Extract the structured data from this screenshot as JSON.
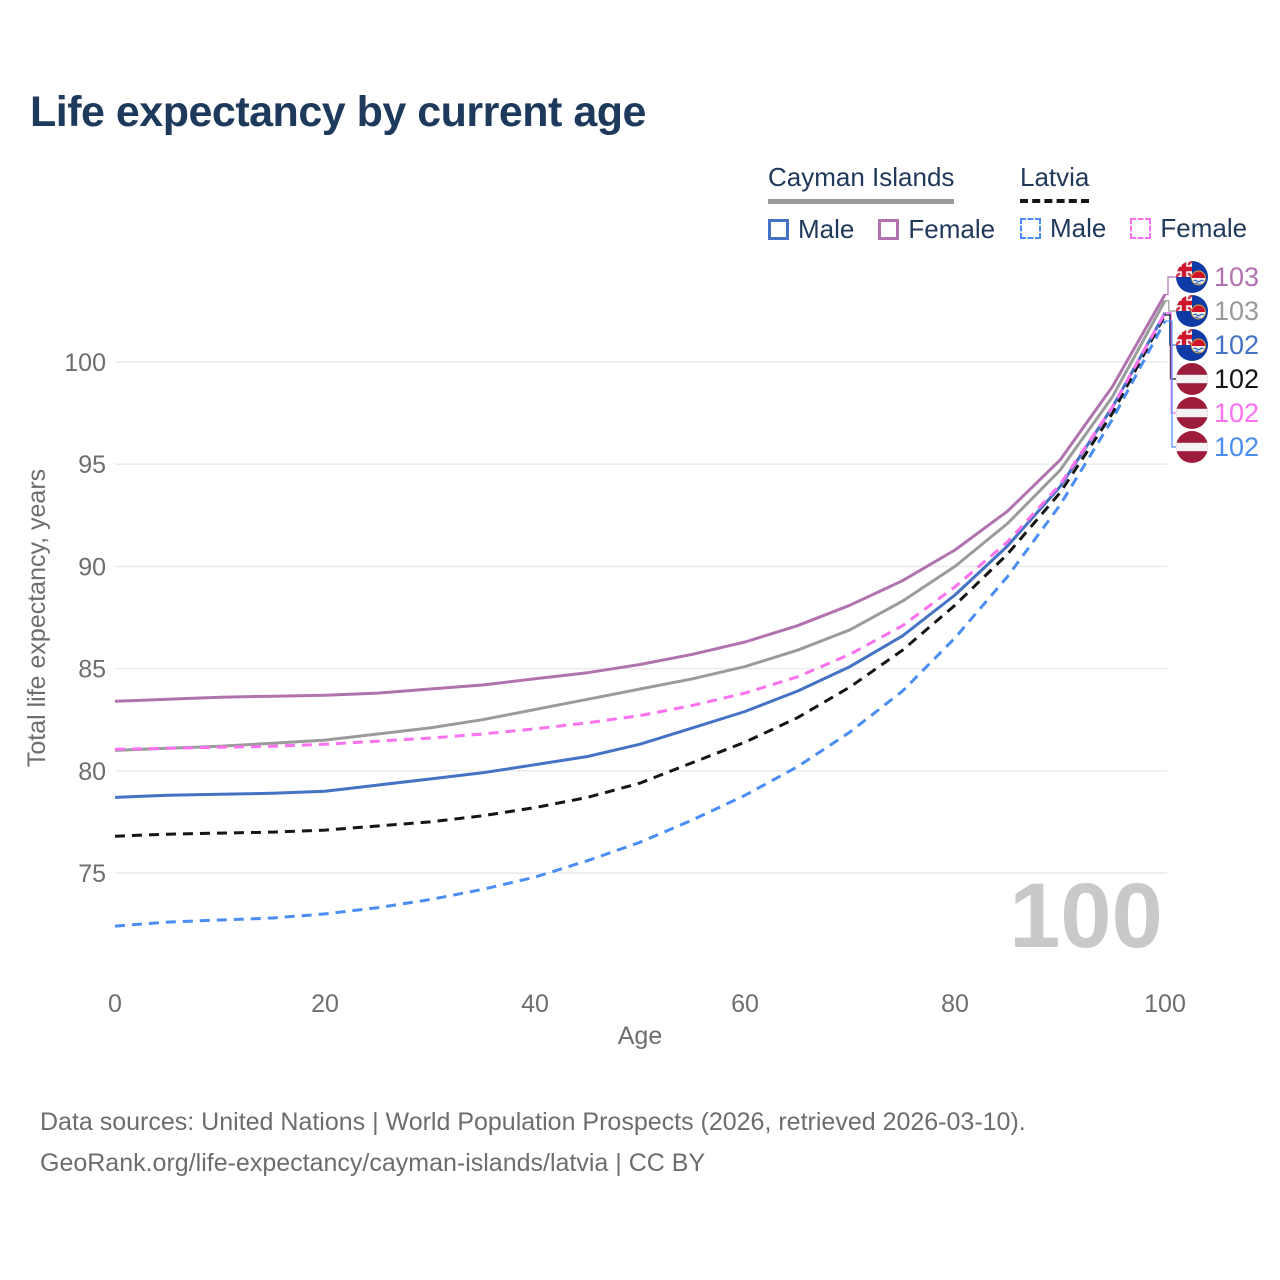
{
  "title": "Life expectancy by current age",
  "legend": {
    "groups": [
      {
        "label": "Cayman Islands",
        "line_style": "solid",
        "underline_color": "#9b9b9b",
        "items": [
          {
            "label": "Male",
            "color": "#4472c4"
          },
          {
            "label": "Female",
            "color": "#b173af"
          }
        ]
      },
      {
        "label": "Latvia",
        "line_style": "dashed",
        "underline_color": "#151515",
        "items": [
          {
            "label": "Male",
            "color": "#4a8df5"
          },
          {
            "label": "Female",
            "color": "#fb71ee"
          }
        ]
      }
    ]
  },
  "chart_data": {
    "type": "line",
    "title": "Life expectancy by current age",
    "xlabel": "Age",
    "ylabel": "Total life expectancy, years",
    "x_ticks": [
      0,
      20,
      40,
      60,
      80,
      100
    ],
    "y_ticks": [
      75,
      80,
      85,
      90,
      95,
      100
    ],
    "xlim": [
      0,
      100
    ],
    "ylim": [
      71.5,
      104
    ],
    "grid": "horizontal",
    "legend_position": "top-right",
    "watermark": "100",
    "ages": [
      0,
      5,
      10,
      15,
      20,
      25,
      30,
      35,
      40,
      45,
      50,
      55,
      60,
      65,
      70,
      75,
      80,
      85,
      90,
      95,
      100
    ],
    "series": [
      {
        "name": "Cayman Islands Female",
        "country": "Cayman Islands",
        "sex": "Female",
        "color": "#b173af",
        "dashed": false,
        "flag": "cayman",
        "end_label": "103",
        "values": [
          83.4,
          83.5,
          83.6,
          83.65,
          83.7,
          83.8,
          84.0,
          84.2,
          84.5,
          84.8,
          85.2,
          85.7,
          86.3,
          87.1,
          88.1,
          89.3,
          90.8,
          92.7,
          95.2,
          98.8,
          103.3
        ]
      },
      {
        "name": "Cayman Islands Both sexes",
        "country": "Cayman Islands",
        "sex": "Both",
        "color": "#9b9b9b",
        "dashed": false,
        "flag": "cayman",
        "end_label": "103",
        "values": [
          81.0,
          81.1,
          81.2,
          81.35,
          81.5,
          81.8,
          82.1,
          82.5,
          83.0,
          83.5,
          84.0,
          84.5,
          85.1,
          85.9,
          86.9,
          88.3,
          90.0,
          92.1,
          94.7,
          98.3,
          103.0
        ]
      },
      {
        "name": "Cayman Islands Male",
        "country": "Cayman Islands",
        "sex": "Male",
        "color": "#4472c4",
        "dashed": false,
        "flag": "cayman",
        "end_label": "102",
        "values": [
          78.7,
          78.8,
          78.85,
          78.9,
          79.0,
          79.3,
          79.6,
          79.9,
          80.3,
          80.7,
          81.3,
          82.1,
          82.9,
          83.9,
          85.1,
          86.6,
          88.6,
          91.0,
          93.9,
          97.8,
          102.4
        ]
      },
      {
        "name": "Latvia Both sexes",
        "country": "Latvia",
        "sex": "Both",
        "color": "#151515",
        "dashed": true,
        "flag": "latvia",
        "end_label": "102",
        "values": [
          76.8,
          76.9,
          76.95,
          77.0,
          77.1,
          77.3,
          77.5,
          77.8,
          78.2,
          78.7,
          79.4,
          80.4,
          81.4,
          82.6,
          84.1,
          85.9,
          88.1,
          90.6,
          93.6,
          97.5,
          102.3
        ]
      },
      {
        "name": "Latvia Female",
        "country": "Latvia",
        "sex": "Female",
        "color": "#fb71ee",
        "dashed": true,
        "flag": "latvia",
        "end_label": "102",
        "values": [
          81.05,
          81.1,
          81.15,
          81.2,
          81.3,
          81.45,
          81.6,
          81.8,
          82.05,
          82.35,
          82.7,
          83.2,
          83.8,
          84.6,
          85.7,
          87.1,
          89.0,
          91.2,
          94.0,
          97.8,
          102.4
        ]
      },
      {
        "name": "Latvia Male",
        "country": "Latvia",
        "sex": "Male",
        "color": "#4a8df5",
        "dashed": true,
        "flag": "latvia",
        "end_label": "102",
        "values": [
          72.4,
          72.6,
          72.7,
          72.8,
          73.0,
          73.3,
          73.7,
          74.2,
          74.8,
          75.6,
          76.5,
          77.6,
          78.8,
          80.2,
          81.9,
          83.9,
          86.5,
          89.5,
          93.0,
          97.2,
          102.0
        ]
      }
    ]
  },
  "footer": {
    "line1": "Data sources: United Nations | World Population Prospects (2026, retrieved 2026-03-10).",
    "line2": "GeoRank.org/life-expectancy/cayman-islands/latvia | CC BY"
  }
}
